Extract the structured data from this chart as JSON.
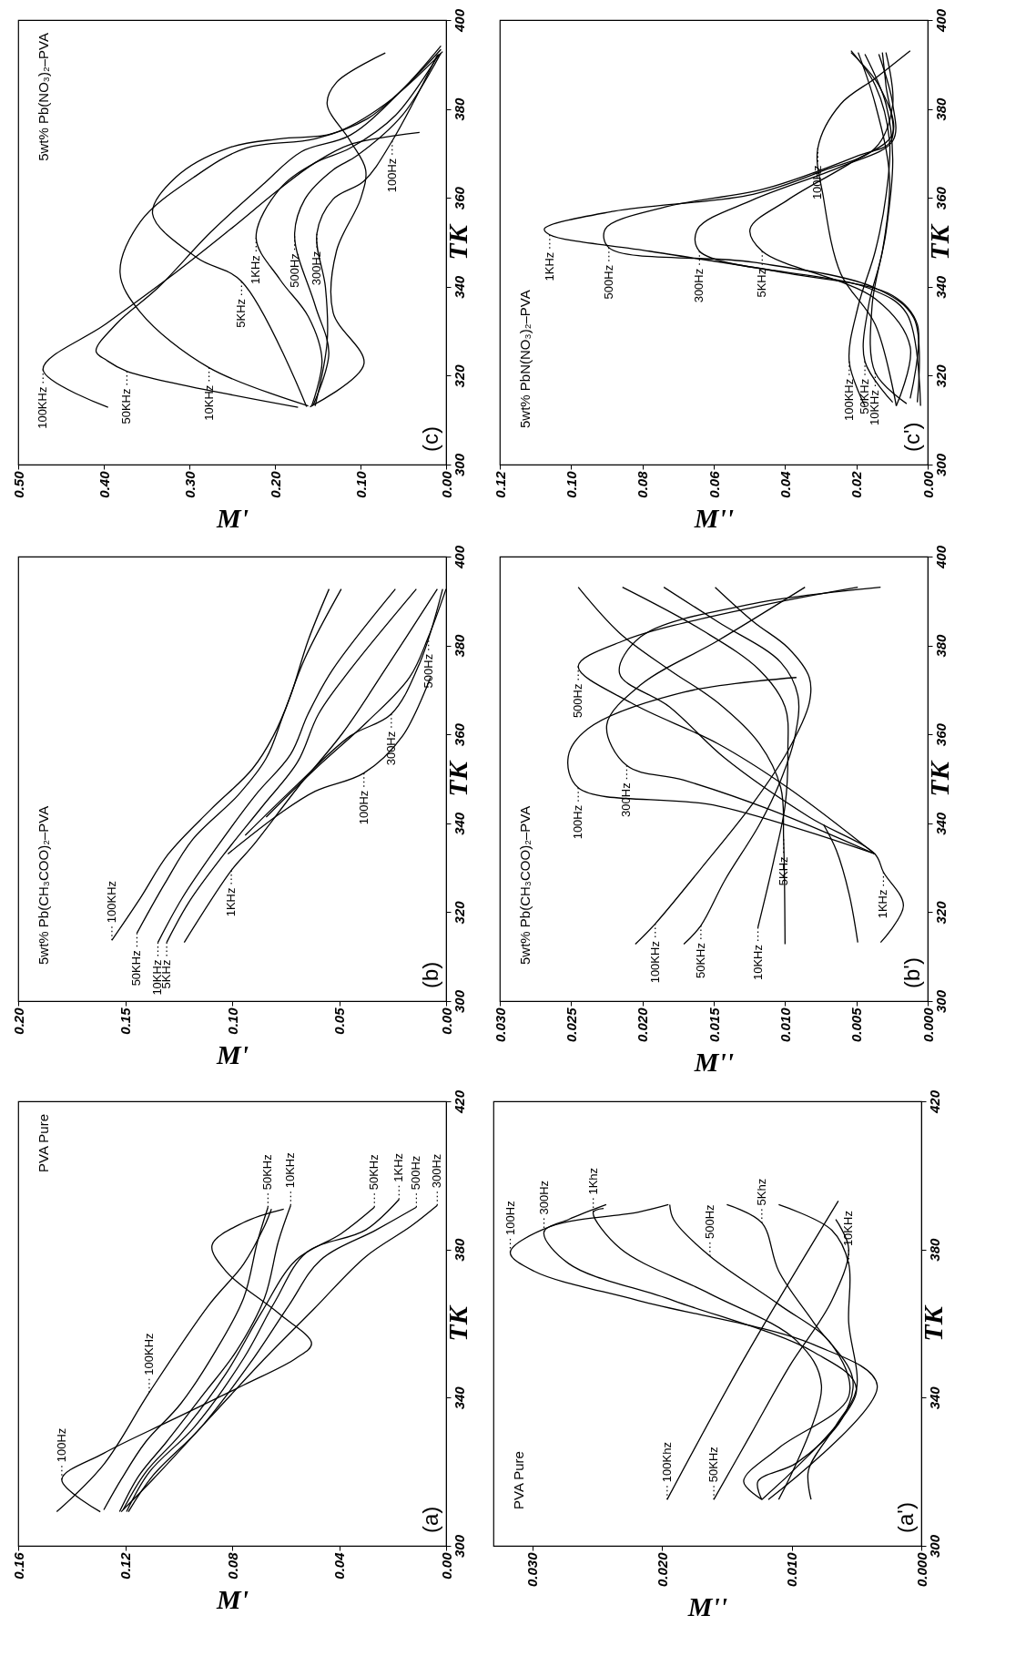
{
  "chart_data": [
    {
      "type": "line",
      "title": "5wt% Pb(NO₃)₂–PVA",
      "xlabel": "M'",
      "ylabel": "TK",
      "xlim": [
        0.5,
        0
      ],
      "ylim": [
        300,
        400
      ],
      "xticks": [
        {
          "value": 0.5,
          "label": "0.50"
        },
        {
          "value": 0.4,
          "label": "0.40"
        },
        {
          "value": 0.3,
          "label": "0.30"
        },
        {
          "value": 0.2,
          "label": "0.20"
        },
        {
          "value": 0.1,
          "label": "0.10"
        },
        {
          "value": 0,
          "label": "0.00"
        }
      ],
      "yticks": [
        300,
        320,
        340,
        360,
        380,
        400
      ],
      "grid": false,
      "legend": false,
      "series": [
        {
          "color": "#000000",
          "x": [
            0.395,
            0.471,
            0.397,
            0.316,
            0.251,
            0.194,
            0.153,
            0.112,
            0.031
          ],
          "values": [
            312.9,
            321.4,
            331.7,
            343.2,
            353.1,
            362.1,
            367.9,
            372,
            374.7
          ]
        },
        {
          "color": "#000000",
          "x": [
            0.173,
            0.373,
            0.397,
            0.409,
            0.385,
            0.336,
            0.275,
            0.214,
            0.169,
            0.112,
            0.051,
            0.006
          ],
          "values": [
            312.9,
            321,
            323.5,
            325.5,
            331.7,
            339.9,
            352.3,
            363,
            370.4,
            374.1,
            384.4,
            394.2
          ]
        },
        {
          "color": "#000000",
          "x": [
            0.161,
            0.277,
            0.357,
            0.381,
            0.357,
            0.295,
            0.234,
            0.153,
            0.092,
            0.051,
            0.006
          ],
          "values": [
            313.2,
            321.8,
            334.2,
            343.2,
            354.7,
            364.6,
            371.2,
            373.3,
            377.8,
            384.4,
            393.4
          ]
        },
        {
          "color": "#000000",
          "x": [
            0.163,
            0.239,
            0.291,
            0.343,
            0.316,
            0.255,
            0.194,
            0.132,
            0.071,
            0.004
          ],
          "values": [
            313,
            341.2,
            346.5,
            356.4,
            364.6,
            371.2,
            373.3,
            374.5,
            381.1,
            392.9
          ]
        },
        {
          "color": "#000000",
          "x": [
            0.157,
            0.145,
            0.161,
            0.194,
            0.222,
            0.194,
            0.153,
            0.112,
            0.059,
            0.008
          ],
          "values": [
            313.2,
            323.5,
            333.3,
            341.6,
            351,
            362.1,
            367.9,
            371.2,
            378.6,
            392.4
          ]
        },
        {
          "color": "#000000",
          "x": [
            0.155,
            0.137,
            0.153,
            0.177,
            0.165,
            0.132,
            0.104,
            0.051,
            0.006
          ],
          "values": [
            313.5,
            325.1,
            335.8,
            351.4,
            359.7,
            366.3,
            369.5,
            378.6,
            392.6
          ]
        },
        {
          "color": "#000000",
          "x": [
            0.153,
            0.139,
            0.141,
            0.151,
            0.132,
            0.096,
            0.063,
            0.01
          ],
          "values": [
            313.2,
            327.6,
            339.9,
            351.9,
            359.7,
            363.8,
            372.8,
            392.2
          ]
        },
        {
          "color": "#000000",
          "x": [
            0.159,
            0.096,
            0.132,
            0.128,
            0.1,
            0.094,
            0.112,
            0.139,
            0.128,
            0.071
          ],
          "values": [
            313,
            322.6,
            334.2,
            348.1,
            359.7,
            366.3,
            372.8,
            381.1,
            386,
            392.6
          ]
        }
      ],
      "annotations": [
        {
          "text": "100KHz",
          "x": 0.471,
          "y": 321.4
        },
        {
          "text": "50KHz",
          "x": 0.373,
          "y": 321
        },
        {
          "text": "10KHz",
          "x": 0.277,
          "y": 321.8
        },
        {
          "text": "5KHz",
          "x": 0.239,
          "y": 341.2
        },
        {
          "text": "1KHz",
          "x": 0.222,
          "y": 351
        },
        {
          "text": "500Hz",
          "x": 0.177,
          "y": 351.4
        },
        {
          "text": "300Hz",
          "x": 0.151,
          "y": 351.9
        },
        {
          "text": "100Hz",
          "x": 0.063,
          "y": 372.8
        },
        "(c)"
      ]
    },
    {
      "type": "line",
      "title": "5wt% PbN(NO₃)₂–PVA",
      "xlabel": "M''",
      "ylabel": "TK",
      "xlim": [
        0.12,
        0
      ],
      "ylim": [
        300,
        400
      ],
      "xticks": [
        {
          "value": 0.12,
          "label": "0.12"
        },
        {
          "value": 0.1,
          "label": "0.10"
        },
        {
          "value": 0.08,
          "label": "0.08"
        },
        {
          "value": 0.06,
          "label": "0.06"
        },
        {
          "value": 0.04,
          "label": "0.04"
        },
        {
          "value": 0.02,
          "label": "0.02"
        },
        {
          "value": 0,
          "label": "0.00"
        }
      ],
      "yticks": [
        300,
        320,
        340,
        360,
        380,
        400
      ],
      "grid": false,
      "legend": false,
      "series": [
        {
          "color": "#000000",
          "x": [
            0.0049,
            0.0029,
            0.0098,
            0.039,
            0.078,
            0.106,
            0.1075,
            0.088,
            0.049,
            0.029,
            0.0147,
            0.0098,
            0.0117
          ],
          "values": [
            314.9,
            331.5,
            338,
            343,
            348,
            351.7,
            353,
            357,
            360.8,
            366.2,
            371.2,
            381,
            392.7
          ]
        },
        {
          "color": "#000000",
          "x": [
            0.0029,
            0.0039,
            0.0147,
            0.0489,
            0.0894,
            0.0904,
            0.0733,
            0.0459,
            0.0195,
            0.0103,
            0.0117,
            0.0127
          ],
          "values": [
            314,
            333,
            339.7,
            345.5,
            348.8,
            353,
            358,
            362,
            369.5,
            372.8,
            385.3,
            392.7
          ]
        },
        {
          "color": "#000000",
          "x": [
            0.002,
            0.0059,
            0.0166,
            0.064,
            0.0645,
            0.0489,
            0.0244,
            0.0098,
            0.0098,
            0.0137
          ],
          "values": [
            313.2,
            334,
            339.7,
            348,
            353,
            359.6,
            367,
            372.8,
            381.1,
            392.3
          ]
        },
        {
          "color": "#000000",
          "x": [
            0.0088,
            0.0049,
            0.0147,
            0.0464,
            0.0498,
            0.0391,
            0.0215,
            0.0098,
            0.0137,
            0.0215
          ],
          "values": [
            313.2,
            326.5,
            337.3,
            348,
            353,
            359.6,
            367.9,
            374.5,
            385.3,
            392.7
          ]
        },
        {
          "color": "#000000",
          "x": [
            0.0088,
            0.0147,
            0.0244,
            0.0293,
            0.0308,
            0.0244,
            0.0147,
            0.0049
          ],
          "values": [
            313.2,
            331.5,
            343,
            360.4,
            371.2,
            381.1,
            386.9,
            393.1
          ]
        },
        {
          "color": "#000000",
          "x": [
            0.0176,
            0.022,
            0.0195,
            0.0147,
            0.0117,
            0.0107,
            0.0147,
            0.0215
          ],
          "values": [
            313.2,
            323.2,
            335.6,
            348,
            360.4,
            372.8,
            385.3,
            393.1
          ]
        },
        {
          "color": "#000000",
          "x": [
            0.0098,
            0.0176,
            0.0166,
            0.0127,
            0.0107,
            0.0147,
            0.0195
          ],
          "values": [
            314,
            323.2,
            335.6,
            348,
            364.6,
            381.1,
            392.7
          ]
        },
        {
          "color": "#000000",
          "x": [
            0.0059,
            0.0147,
            0.0156,
            0.0117,
            0.0098,
            0.0117,
            0.0176
          ],
          "values": [
            313.7,
            320.7,
            335.6,
            352.2,
            368.7,
            381.1,
            392.3
          ]
        }
      ],
      "annotations": [
        {
          "text": "1KHz",
          "x": 0.106,
          "y": 351.7
        },
        {
          "text": "500Hz",
          "x": 0.0894,
          "y": 348.8
        },
        {
          "text": "300Hz",
          "x": 0.064,
          "y": 348
        },
        {
          "text": "5KHz",
          "x": 0.0464,
          "y": 348
        },
        {
          "text": "100Hz",
          "x": 0.0308,
          "y": 371.2
        },
        {
          "text": "100KHz",
          "x": 0.022,
          "y": 323.2
        },
        {
          "text": "50KHz",
          "x": 0.0176,
          "y": 323.2
        },
        {
          "text": "10KHz",
          "x": 0.0147,
          "y": 320.7
        },
        "(c')"
      ]
    },
    {
      "type": "line",
      "title": "5wt% Pb(CH₃COO)₂–PVA",
      "xlabel": "M'",
      "ylabel": "TK",
      "xlim": [
        0.2,
        0
      ],
      "ylim": [
        300,
        400
      ],
      "xticks": [
        {
          "value": 0.2,
          "label": "0.20"
        },
        {
          "value": 0.15,
          "label": "0.15"
        },
        {
          "value": 0.1,
          "label": "0.10"
        },
        {
          "value": 0.05,
          "label": "0.05"
        },
        {
          "value": 0,
          "label": "0.00"
        }
      ],
      "yticks": [
        300,
        320,
        340,
        360,
        380,
        400
      ],
      "grid": false,
      "legend": false,
      "series": [
        {
          "color": "#000000",
          "x": [
            0.1562,
            0.1429,
            0.1298,
            0.1102,
            0.0906,
            0.0808,
            0.0727,
            0.0645,
            0.0547
          ],
          "values": [
            313.7,
            323.2,
            333.1,
            343,
            352.2,
            359.6,
            368.7,
            381.1,
            392.7
          ]
        },
        {
          "color": "#000000",
          "x": [
            0.1445,
            0.1314,
            0.1184,
            0.0971,
            0.0841,
            0.0759,
            0.0661,
            0.049
          ],
          "values": [
            315.3,
            326.5,
            336.4,
            346.4,
            354.6,
            364.6,
            377,
            392.7
          ]
        },
        {
          "color": "#000000",
          "x": [
            0.1347,
            0.1233,
            0.1069,
            0.089,
            0.0727,
            0.0645,
            0.0531,
            0.0237
          ],
          "values": [
            313.2,
            323.2,
            334.8,
            346.4,
            355.5,
            364.6,
            374.5,
            392.7
          ]
        },
        {
          "color": "#000000",
          "x": [
            0.1306,
            0.12,
            0.1037,
            0.0857,
            0.0694,
            0.0596,
            0.0449,
            0.0139
          ],
          "values": [
            313.2,
            322.4,
            333.1,
            343.9,
            353.8,
            364.6,
            374.5,
            392.7
          ]
        },
        {
          "color": "#000000",
          "x": [
            0.1224,
            0.1004,
            0.0906,
            0.0694,
            0.0482,
            0.0286,
            0.0041
          ],
          "values": [
            313.2,
            329.4,
            334.8,
            348,
            360.4,
            374.5,
            392.7
          ]
        },
        {
          "color": "#000000",
          "x": [
            0.102,
            0.0776,
            0.0612,
            0.0384,
            0.0204,
            0.0073
          ],
          "values": [
            333.1,
            342.2,
            347.2,
            351.3,
            359.6,
            372.8
          ]
        },
        {
          "color": "#000000",
          "x": [
            0.0939,
            0.0694,
            0.0449,
            0.0256,
            0.0122,
            0.0016
          ],
          "values": [
            337.3,
            348.8,
            359.6,
            364.6,
            376.2,
            392.7
          ]
        },
        {
          "color": "#000000",
          "x": [
            0.0841,
            0.0612,
            0.0367,
            0.0171,
            0.0082,
            0
          ],
          "values": [
            341.4,
            352.2,
            362.9,
            372.8,
            382,
            392.7
          ]
        }
      ],
      "annotations": [
        {
          "text": "100KHz",
          "x": 0.1562,
          "y": 313.7
        },
        {
          "text": "50KHz",
          "x": 0.1445,
          "y": 315.3
        },
        {
          "text": "10KHz",
          "x": 0.1347,
          "y": 313.2
        },
        {
          "text": "5KHz",
          "x": 0.1306,
          "y": 313.2
        },
        {
          "text": "1KHz",
          "x": 0.1004,
          "y": 329.4
        },
        {
          "text": "100Hz",
          "x": 0.0384,
          "y": 351.3
        },
        {
          "text": "300Hz",
          "x": 0.0256,
          "y": 364.6
        },
        {
          "text": "500Hz",
          "x": 0.0082,
          "y": 382
        },
        "(b)"
      ]
    },
    {
      "type": "line",
      "title": "5wt% Pb(CH₃COO)₂–PVA",
      "xlabel": "M''",
      "ylabel": "TK",
      "xlim": [
        0.03,
        0
      ],
      "ylim": [
        300,
        400
      ],
      "xticks": [
        {
          "value": 0.03,
          "label": "0.030"
        },
        {
          "value": 0.025,
          "label": "0.025"
        },
        {
          "value": 0.02,
          "label": "0.020"
        },
        {
          "value": 0.015,
          "label": "0.015"
        },
        {
          "value": 0.01,
          "label": "0.010"
        },
        {
          "value": 0.005,
          "label": "0.005"
        },
        {
          "value": 0,
          "label": "0.000"
        }
      ],
      "yticks": [
        300,
        320,
        340,
        360,
        380,
        400
      ],
      "grid": false,
      "legend": false,
      "series": [
        {
          "color": "#000000",
          "x": [
            0.0037,
            0.0147,
            0.0245,
            0.0252,
            0.0238,
            0.0171,
            0.0092
          ],
          "values": [
            333.1,
            343.9,
            348,
            355,
            361.3,
            369.5,
            372.8
          ]
        },
        {
          "color": "#000000",
          "x": [
            0.0037,
            0.011,
            0.0171,
            0.0211,
            0.0225,
            0.0201,
            0.0147,
            0.0086
          ],
          "values": [
            333.1,
            343,
            349.7,
            353,
            362.1,
            371.2,
            381.1,
            393.1
          ]
        },
        {
          "color": "#000000",
          "x": [
            0.0037,
            0.0098,
            0.0147,
            0.0208,
            0.0245,
            0.0213,
            0.0122,
            0.0049
          ],
          "values": [
            333.1,
            348,
            357.9,
            367.1,
            375.3,
            381.1,
            388.6,
            393.1
          ]
        },
        {
          "color": "#000000",
          "x": [
            0.0033,
            0.0017,
            0.0031,
            0.0037,
            0.0083,
            0.0142,
            0.0181,
            0.0216,
            0.0201,
            0.0122,
            0.0033
          ],
          "values": [
            313.2,
            321.5,
            329,
            333.1,
            341.4,
            354.6,
            366.2,
            373.7,
            382,
            389.4,
            393.1
          ]
        },
        {
          "color": "#000000",
          "x": [
            0.01,
            0.0101,
            0.0103,
            0.0118,
            0.0147,
            0.0181,
            0.0216,
            0.0245
          ],
          "values": [
            312.8,
            336.4,
            348,
            357.9,
            367.1,
            374.5,
            382.8,
            393.1
          ]
        },
        {
          "color": "#000000",
          "x": [
            0.0119,
            0.0108,
            0.01,
            0.0098,
            0.01,
            0.0118,
            0.0159,
            0.0214
          ],
          "values": [
            316.6,
            331.5,
            343.9,
            356.3,
            366.2,
            374.5,
            383.6,
            393.1
          ]
        },
        {
          "color": "#000000",
          "x": [
            0.0171,
            0.0159,
            0.0142,
            0.0118,
            0.0103,
            0.0093,
            0.0091,
            0.0103,
            0.0147,
            0.0185
          ],
          "values": [
            312.8,
            317,
            327.3,
            339.7,
            349.7,
            359.6,
            368.7,
            376.2,
            385.3,
            393.1
          ]
        },
        {
          "color": "#000000",
          "x": [
            0.0205,
            0.0191,
            0.0159,
            0.0122,
            0.0098,
            0.0083,
            0.0083,
            0.0098,
            0.0122,
            0.0149
          ],
          "values": [
            312.8,
            317.4,
            329.8,
            344.7,
            356.3,
            367.1,
            372.8,
            379.5,
            385.3,
            393.1
          ]
        },
        {
          "color": "#000000",
          "x": [
            0.0049,
            0.0055,
            0.0064,
            0.0073
          ],
          "values": [
            313.2,
            324,
            333.9,
            339.7
          ]
        }
      ],
      "annotations": [
        {
          "text": "100Hz",
          "x": 0.0245,
          "y": 348
        },
        {
          "text": "300Hz",
          "x": 0.0211,
          "y": 353
        },
        {
          "text": "500Hz",
          "x": 0.0245,
          "y": 375.3
        },
        {
          "text": "1KHz",
          "x": 0.0031,
          "y": 329
        },
        {
          "text": "100KHz",
          "x": 0.0191,
          "y": 317.4
        },
        {
          "text": "50KHz",
          "x": 0.0159,
          "y": 317
        },
        {
          "text": "10KHz",
          "x": 0.0119,
          "y": 316.6
        },
        {
          "text": "5KHz",
          "x": 0.0101,
          "y": 336.4
        },
        "(b')"
      ]
    },
    {
      "type": "line",
      "title": "PVA Pure",
      "xlabel": "M'",
      "ylabel": "TK",
      "xlim": [
        0.16,
        0
      ],
      "ylim": [
        300,
        420
      ],
      "xticks": [
        {
          "value": 0.16,
          "label": "0.16"
        },
        {
          "value": 0.12,
          "label": "0.12"
        },
        {
          "value": 0.08,
          "label": "0.08"
        },
        {
          "value": 0.04,
          "label": "0.04"
        },
        {
          "value": 0,
          "label": "0.00"
        }
      ],
      "yticks": [
        300,
        340,
        380,
        420
      ],
      "grid": false,
      "legend": false,
      "series": [
        {
          "color": "#000000",
          "x": [
            0.1293,
            0.1437,
            0.128,
            0.1019,
            0.0757,
            0.0562,
            0.0503,
            0.0627,
            0.0823,
            0.0875,
            0.0757,
            0.0607
          ],
          "values": [
            309.2,
            317.9,
            325,
            334.2,
            343.4,
            350.6,
            354.6,
            362.8,
            374.1,
            381.2,
            387.3,
            390.9
          ]
        },
        {
          "color": "#000000",
          "x": [
            0.1456,
            0.128,
            0.111,
            0.0888,
            0.0757,
            0.0679,
            0.0653
          ],
          "values": [
            309.2,
            322,
            341.4,
            364.9,
            376.1,
            386.3,
            390.9
          ]
        },
        {
          "color": "#000000",
          "x": [
            0.128,
            0.1215,
            0.1123,
            0.0993,
            0.0862,
            0.0757,
            0.0705,
            0.0666
          ],
          "values": [
            309.7,
            317.9,
            328.1,
            338.3,
            352.6,
            366.9,
            382.2,
            391.4
          ]
        },
        {
          "color": "#000000",
          "x": [
            0.1221,
            0.1149,
            0.1045,
            0.0914,
            0.0784,
            0.0679,
            0.0627,
            0.0581
          ],
          "values": [
            309.2,
            318.9,
            328.1,
            340.3,
            352.6,
            366.9,
            382.2,
            391.9
          ]
        },
        {
          "color": "#000000",
          "x": [
            0.1208,
            0.1123,
            0.0993,
            0.0823,
            0.0692,
            0.0562,
            0.0392,
            0.0268
          ],
          "values": [
            309.7,
            319.9,
            330.1,
            346.5,
            362.8,
            377.1,
            384.3,
            391.4
          ]
        },
        {
          "color": "#000000",
          "x": [
            0.1195,
            0.111,
            0.094,
            0.0757,
            0.064,
            0.0522,
            0.03,
            0.0176
          ],
          "values": [
            309.2,
            319.9,
            332.2,
            350.6,
            365.9,
            379.2,
            385.3,
            393.5
          ]
        },
        {
          "color": "#000000",
          "x": [
            0.1188,
            0.1097,
            0.0914,
            0.0731,
            0.0588,
            0.047,
            0.0261,
            0.0111
          ],
          "values": [
            309.2,
            318.9,
            332.2,
            349.5,
            364.9,
            377.1,
            385.3,
            391.4
          ]
        },
        {
          "color": "#000000",
          "x": [
            0.1215,
            0.1097,
            0.0888,
            0.0692,
            0.0496,
            0.03,
            0.0131,
            0.0033
          ],
          "values": [
            309.2,
            317.9,
            334.2,
            349.5,
            363.8,
            378.1,
            386.3,
            391.9
          ]
        }
      ],
      "annotations": [
        {
          "text": "100Hz",
          "x": 0.1437,
          "y": 317.9
        },
        {
          "text": "100KHz",
          "x": 0.111,
          "y": 341.4
        },
        {
          "text": "50KHz",
          "x": 0.0666,
          "y": 391.4
        },
        {
          "text": "10KHz",
          "x": 0.0581,
          "y": 391.9
        },
        {
          "text": "50KHz",
          "x": 0.0268,
          "y": 391.4
        },
        {
          "text": "1KHz",
          "x": 0.0176,
          "y": 393.5
        },
        {
          "text": "500Hz",
          "x": 0.0111,
          "y": 391.4
        },
        {
          "text": "300Hz",
          "x": 0.0033,
          "y": 391.9
        },
        "(a)"
      ]
    },
    {
      "type": "line",
      "title": "PVA Pure",
      "xlabel": "M''",
      "ylabel": "TK",
      "xlim": [
        0.033,
        0
      ],
      "ylim": [
        300,
        420
      ],
      "xticks": [
        {
          "value": 0.03,
          "label": "0.030"
        },
        {
          "value": 0.02,
          "label": "0.020"
        },
        {
          "value": 0.01,
          "label": "0.010"
        },
        {
          "value": 0,
          "label": "0.000"
        }
      ],
      "yticks": [
        300,
        340,
        380,
        420
      ],
      "grid": false,
      "legend": false,
      "series": [
        {
          "color": "#000000",
          "x": [
            0.0118,
            0.0034,
            0.0083,
            0.0218,
            0.0299,
            0.0317,
            0.0286,
            0.0218,
            0.0195
          ],
          "values": [
            312.5,
            343.3,
            354.3,
            366.2,
            374.2,
            379.2,
            386.2,
            390.1,
            392.1
          ]
        },
        {
          "color": "#000000",
          "x": [
            0.0123,
            0.005,
            0.0083,
            0.0191,
            0.0272,
            0.0291,
            0.0272,
            0.0243
          ],
          "values": [
            312.5,
            342.3,
            352.3,
            366.2,
            376.2,
            384.7,
            388.1,
            392.1
          ]
        },
        {
          "color": "#000000",
          "x": [
            0.011,
            0.0077,
            0.0096,
            0.0164,
            0.0232,
            0.0253,
            0.0245
          ],
          "values": [
            312.5,
            343.3,
            355.3,
            368.2,
            380.2,
            390.1,
            391.1
          ]
        },
        {
          "color": "#000000",
          "x": [
            0.0123,
            0.0137,
            0.011,
            0.0056,
            0.0069,
            0.011,
            0.0163,
            0.0191,
            0.0194
          ],
          "values": [
            312.5,
            317.4,
            326.4,
            340.3,
            354.3,
            365.2,
            378.2,
            388.1,
            392.1
          ]
        },
        {
          "color": "#000000",
          "x": [
            0.0123,
            0.0126,
            0.0096,
            0.0061,
            0.0053,
            0.0083,
            0.011,
            0.0123,
            0.015
          ],
          "values": [
            312.5,
            317.4,
            322.4,
            334.4,
            345.3,
            360.3,
            374.2,
            387.2,
            392.1
          ]
        },
        {
          "color": "#000000",
          "x": [
            0.0085,
            0.0087,
            0.0066,
            0.005,
            0.0056,
            0.0056,
            0.0069,
            0.011
          ],
          "values": [
            312.5,
            320.4,
            332.4,
            342.3,
            360.3,
            376.2,
            385.2,
            392.1
          ]
        },
        {
          "color": "#000000",
          "x": [
            0.0196,
            0.0137,
            0.0064
          ],
          "values": [
            312.5,
            350.3,
            393.1
          ]
        },
        {
          "color": "#000000",
          "x": [
            0.016,
            0.0131,
            0.0102,
            0.0069,
            0.0056,
            0.0066
          ],
          "values": [
            312.5,
            330.4,
            348.3,
            366.2,
            380.2,
            388.1
          ]
        }
      ],
      "annotations": [
        {
          "text": "100Hz",
          "x": 0.0317,
          "y": 379.2
        },
        {
          "text": "300Hz",
          "x": 0.0291,
          "y": 384.7
        },
        {
          "text": "1Khz",
          "x": 0.0253,
          "y": 390.1
        },
        {
          "text": "500Hz",
          "x": 0.0163,
          "y": 378.2
        },
        {
          "text": "5Khz",
          "x": 0.0123,
          "y": 387.2
        },
        {
          "text": "10KHz",
          "x": 0.0056,
          "y": 376.2
        },
        {
          "text": "100Khz",
          "x": 0.0196,
          "y": 312.5
        },
        {
          "text": "50KHz",
          "x": 0.016,
          "y": 312.5
        },
        "(a')"
      ]
    }
  ]
}
